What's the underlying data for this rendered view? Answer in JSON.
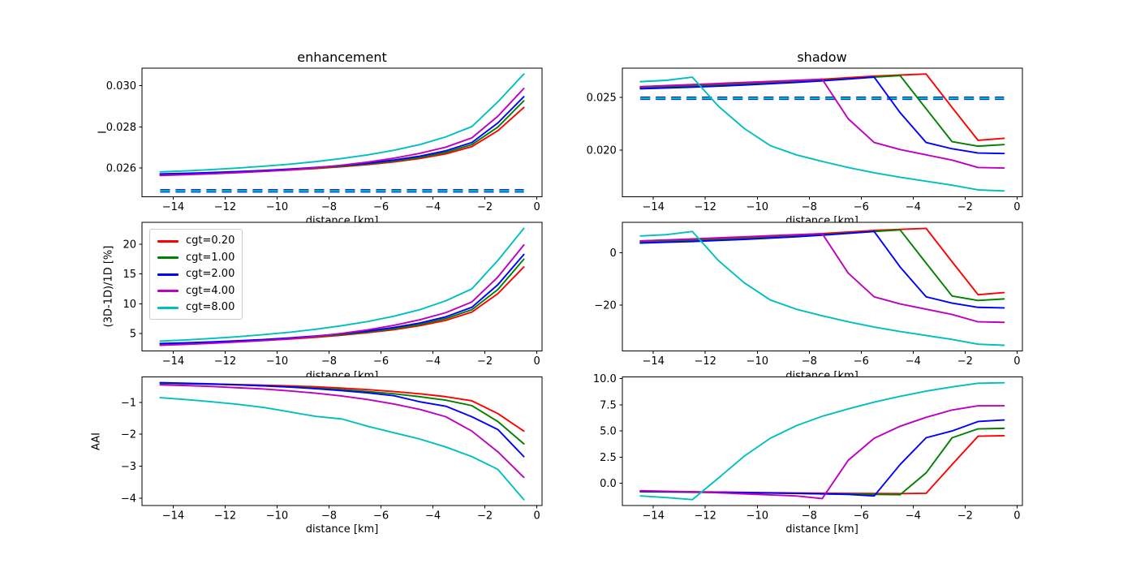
{
  "legend": {
    "entries": [
      {
        "label": "cgt=0.20",
        "color": "#ff0000"
      },
      {
        "label": "cgt=1.00",
        "color": "#008000"
      },
      {
        "label": "cgt=2.00",
        "color": "#0000ff"
      },
      {
        "label": "cgt=4.00",
        "color": "#bf00bf"
      },
      {
        "label": "cgt=8.00",
        "color": "#00bfbf"
      }
    ]
  },
  "chart_data": {
    "type": "line",
    "xlim": [
      -15.2,
      0.2
    ],
    "x_km": [
      -14.5,
      -13.5,
      -12.5,
      -11.5,
      -10.5,
      -9.5,
      -8.5,
      -7.5,
      -6.5,
      -5.5,
      -4.5,
      -3.5,
      -2.5,
      -1.5,
      -0.5
    ],
    "xticks": [
      {
        "v": -14,
        "t": "−14"
      },
      {
        "v": -12,
        "t": "−12"
      },
      {
        "v": -10,
        "t": "−10"
      },
      {
        "v": -8,
        "t": "−8"
      },
      {
        "v": -6,
        "t": "−6"
      },
      {
        "v": -4,
        "t": "−4"
      },
      {
        "v": -2,
        "t": "−2"
      },
      {
        "v": 0,
        "t": "0"
      }
    ],
    "panels": [
      {
        "id": "enhancement-intensity",
        "row": 0,
        "col": 0,
        "title": "enhancement",
        "ylabel": "I",
        "xlabel": "distance [km]",
        "ylim": [
          0.024617,
          0.030835
        ],
        "yticks": [
          {
            "v": 0.026,
            "t": "0.026"
          },
          {
            "v": 0.028,
            "t": "0.028"
          },
          {
            "v": 0.03,
            "t": "0.030"
          }
        ],
        "hline": {
          "y": 0.0249,
          "x_range": [
            -14.5,
            -0.5
          ],
          "colors": [
            "#0000ff",
            "#00bfbf"
          ]
        },
        "series": [
          [
            0.025697,
            0.025722,
            0.025759,
            0.025801,
            0.025851,
            0.025911,
            0.025983,
            0.02607,
            0.026175,
            0.026302,
            0.026469,
            0.026693,
            0.027041,
            0.027813,
            0.028934
          ],
          [
            0.025709,
            0.025737,
            0.025772,
            0.025816,
            0.025871,
            0.025933,
            0.026008,
            0.026095,
            0.026207,
            0.026344,
            0.026519,
            0.026768,
            0.027141,
            0.027988,
            0.029258
          ],
          [
            0.025722,
            0.025752,
            0.025789,
            0.025834,
            0.025889,
            0.025956,
            0.026035,
            0.02613,
            0.026245,
            0.026394,
            0.026581,
            0.026842,
            0.027241,
            0.028187,
            0.029457
          ],
          [
            0.025647,
            0.025684,
            0.025729,
            0.025784,
            0.025846,
            0.025921,
            0.02602,
            0.026145,
            0.026294,
            0.026481,
            0.026718,
            0.027017,
            0.027465,
            0.028511,
            0.029855
          ],
          [
            0.025821,
            0.025871,
            0.025933,
            0.026008,
            0.026095,
            0.026195,
            0.026319,
            0.026469,
            0.026643,
            0.026867,
            0.027141,
            0.027515,
            0.028013,
            0.029208,
            0.030552
          ]
        ]
      },
      {
        "id": "shadow-intensity",
        "row": 0,
        "col": 1,
        "title": "shadow",
        "xlabel": "distance [km]",
        "ylim": [
          0.015582,
          0.027744
        ],
        "yticks": [
          {
            "v": 0.02,
            "t": "0.020"
          },
          {
            "v": 0.025,
            "t": "0.025"
          }
        ],
        "hline": {
          "y": 0.0249,
          "x_range": [
            -14.5,
            -0.5
          ],
          "colors": [
            "#0000ff",
            "#00bfbf"
          ]
        },
        "series": [
          [
            0.025996,
            0.02607,
            0.026145,
            0.026245,
            0.026344,
            0.026444,
            0.026568,
            0.026693,
            0.026842,
            0.026992,
            0.027091,
            0.027191,
            0.024029,
            0.020916,
            0.021115
          ],
          [
            0.025896,
            0.025971,
            0.026045,
            0.02612,
            0.02622,
            0.026319,
            0.026444,
            0.026593,
            0.026743,
            0.026892,
            0.027041,
            0.023904,
            0.020792,
            0.020368,
            0.020518
          ],
          [
            0.025796,
            0.025871,
            0.025946,
            0.026045,
            0.026145,
            0.02627,
            0.026394,
            0.026543,
            0.026718,
            0.026892,
            0.023531,
            0.020717,
            0.020119,
            0.019721,
            0.019671
          ],
          [
            0.025996,
            0.026095,
            0.026195,
            0.026294,
            0.026394,
            0.026494,
            0.026593,
            0.026693,
            0.022958,
            0.020717,
            0.020045,
            0.019547,
            0.019049,
            0.018351,
            0.018302
          ],
          [
            0.026469,
            0.026593,
            0.026892,
            0.024153,
            0.022037,
            0.020418,
            0.019547,
            0.018924,
            0.018351,
            0.017853,
            0.01743,
            0.017057,
            0.016683,
            0.016235,
            0.016135
          ]
        ]
      },
      {
        "id": "enhancement-relative",
        "row": 1,
        "col": 0,
        "ylabel": "(3D-1D)/1D [%]",
        "xlabel": "distance [km]",
        "has_legend": true,
        "ylim": [
          2.015,
          23.685
        ],
        "yticks": [
          {
            "v": 5,
            "t": "5"
          },
          {
            "v": 10,
            "t": "10"
          },
          {
            "v": 15,
            "t": "15"
          },
          {
            "v": 20,
            "t": "20"
          }
        ],
        "series": [
          [
            3.2,
            3.3,
            3.45,
            3.62,
            3.82,
            4.06,
            4.35,
            4.7,
            5.12,
            5.63,
            6.3,
            7.2,
            8.6,
            11.7,
            16.2
          ],
          [
            3.25,
            3.36,
            3.5,
            3.68,
            3.9,
            4.15,
            4.45,
            4.8,
            5.25,
            5.8,
            6.5,
            7.5,
            9.0,
            12.4,
            17.5
          ],
          [
            3.3,
            3.42,
            3.57,
            3.75,
            3.97,
            4.24,
            4.56,
            4.94,
            5.4,
            6.0,
            6.75,
            7.8,
            9.4,
            13.2,
            18.3
          ],
          [
            3.0,
            3.15,
            3.33,
            3.55,
            3.8,
            4.1,
            4.5,
            5.0,
            5.6,
            6.35,
            7.3,
            8.5,
            10.3,
            14.5,
            19.9
          ],
          [
            3.7,
            3.9,
            4.15,
            4.45,
            4.8,
            5.2,
            5.7,
            6.3,
            7.0,
            7.9,
            9.0,
            10.5,
            12.5,
            17.3,
            22.7
          ]
        ]
      },
      {
        "id": "shadow-relative",
        "row": 1,
        "col": 1,
        "xlabel": "distance [km]",
        "ylim": [
          -37.42,
          11.42
        ],
        "yticks": [
          {
            "v": -20,
            "t": "−20"
          },
          {
            "v": 0,
            "t": "0"
          }
        ],
        "series": [
          [
            4.4,
            4.7,
            5.0,
            5.4,
            5.8,
            6.2,
            6.7,
            7.2,
            7.8,
            8.4,
            8.8,
            9.2,
            -3.5,
            -16.0,
            -15.2
          ],
          [
            4.0,
            4.3,
            4.6,
            4.9,
            5.3,
            5.7,
            6.2,
            6.8,
            7.4,
            8.0,
            8.6,
            -4.0,
            -16.5,
            -18.2,
            -17.6
          ],
          [
            3.6,
            3.9,
            4.2,
            4.6,
            5.0,
            5.5,
            6.0,
            6.6,
            7.3,
            8.0,
            -5.5,
            -16.8,
            -19.2,
            -20.8,
            -21.0
          ],
          [
            4.4,
            4.8,
            5.2,
            5.6,
            6.0,
            6.4,
            6.8,
            7.2,
            -7.8,
            -16.8,
            -19.5,
            -21.5,
            -23.5,
            -26.3,
            -26.5
          ],
          [
            6.3,
            6.8,
            8.0,
            -3.0,
            -11.5,
            -18.0,
            -21.5,
            -24.0,
            -26.3,
            -28.3,
            -30.0,
            -31.5,
            -33.0,
            -34.8,
            -35.2
          ]
        ]
      },
      {
        "id": "enhancement-aai",
        "row": 2,
        "col": 0,
        "ylabel": "AAI",
        "xlabel": "distance [km]",
        "ylim": [
          -4.234,
          -0.197
        ],
        "yticks": [
          {
            "v": -4,
            "t": "−4"
          },
          {
            "v": -3,
            "t": "−3"
          },
          {
            "v": -2,
            "t": "−2"
          },
          {
            "v": -1,
            "t": "−1"
          }
        ],
        "series": [
          [
            -0.4,
            -0.41,
            -0.42,
            -0.44,
            -0.46,
            -0.48,
            -0.51,
            -0.55,
            -0.6,
            -0.66,
            -0.73,
            -0.82,
            -0.95,
            -1.35,
            -1.9
          ],
          [
            -0.4,
            -0.41,
            -0.43,
            -0.45,
            -0.48,
            -0.51,
            -0.55,
            -0.6,
            -0.66,
            -0.73,
            -0.82,
            -0.93,
            -1.1,
            -1.6,
            -2.3
          ],
          [
            -0.38,
            -0.4,
            -0.42,
            -0.45,
            -0.48,
            -0.52,
            -0.57,
            -0.63,
            -0.7,
            -0.79,
            -0.98,
            -1.12,
            -1.45,
            -1.85,
            -2.7
          ],
          [
            -0.45,
            -0.47,
            -0.5,
            -0.54,
            -0.58,
            -0.64,
            -0.71,
            -0.8,
            -0.91,
            -1.05,
            -1.22,
            -1.45,
            -1.9,
            -2.55,
            -3.35
          ],
          [
            -0.85,
            -0.91,
            -0.98,
            -1.06,
            -1.16,
            -1.3,
            -1.44,
            -1.52,
            -1.75,
            -1.95,
            -2.15,
            -2.4,
            -2.7,
            -3.1,
            -4.05
          ]
        ]
      },
      {
        "id": "shadow-aai",
        "row": 2,
        "col": 1,
        "xlabel": "distance [km]",
        "ylim": [
          -2.113,
          10.163
        ],
        "yticks": [
          {
            "v": 0,
            "t": "0.0"
          },
          {
            "v": 2.5,
            "t": "2.5"
          },
          {
            "v": 5,
            "t": "5.0"
          },
          {
            "v": 7.5,
            "t": "7.5"
          },
          {
            "v": 10,
            "t": "10.0"
          }
        ],
        "series": [
          [
            -0.75,
            -0.78,
            -0.8,
            -0.83,
            -0.86,
            -0.89,
            -0.92,
            -0.94,
            -0.96,
            -0.97,
            -0.98,
            -0.95,
            1.8,
            4.5,
            4.55
          ],
          [
            -0.8,
            -0.82,
            -0.85,
            -0.88,
            -0.9,
            -0.93,
            -0.96,
            -1.0,
            -1.02,
            -1.05,
            -1.08,
            1.0,
            4.35,
            5.2,
            5.25
          ],
          [
            -0.75,
            -0.78,
            -0.82,
            -0.85,
            -0.88,
            -0.92,
            -0.95,
            -1.0,
            -1.05,
            -1.2,
            1.8,
            4.35,
            5.0,
            5.9,
            6.05
          ],
          [
            -0.7,
            -0.75,
            -0.8,
            -0.9,
            -1.0,
            -1.1,
            -1.2,
            -1.45,
            2.2,
            4.3,
            5.45,
            6.3,
            7.0,
            7.4,
            7.4
          ],
          [
            -1.2,
            -1.35,
            -1.55,
            0.5,
            2.6,
            4.3,
            5.5,
            6.4,
            7.1,
            7.75,
            8.3,
            8.8,
            9.2,
            9.55,
            9.6
          ]
        ]
      }
    ]
  }
}
